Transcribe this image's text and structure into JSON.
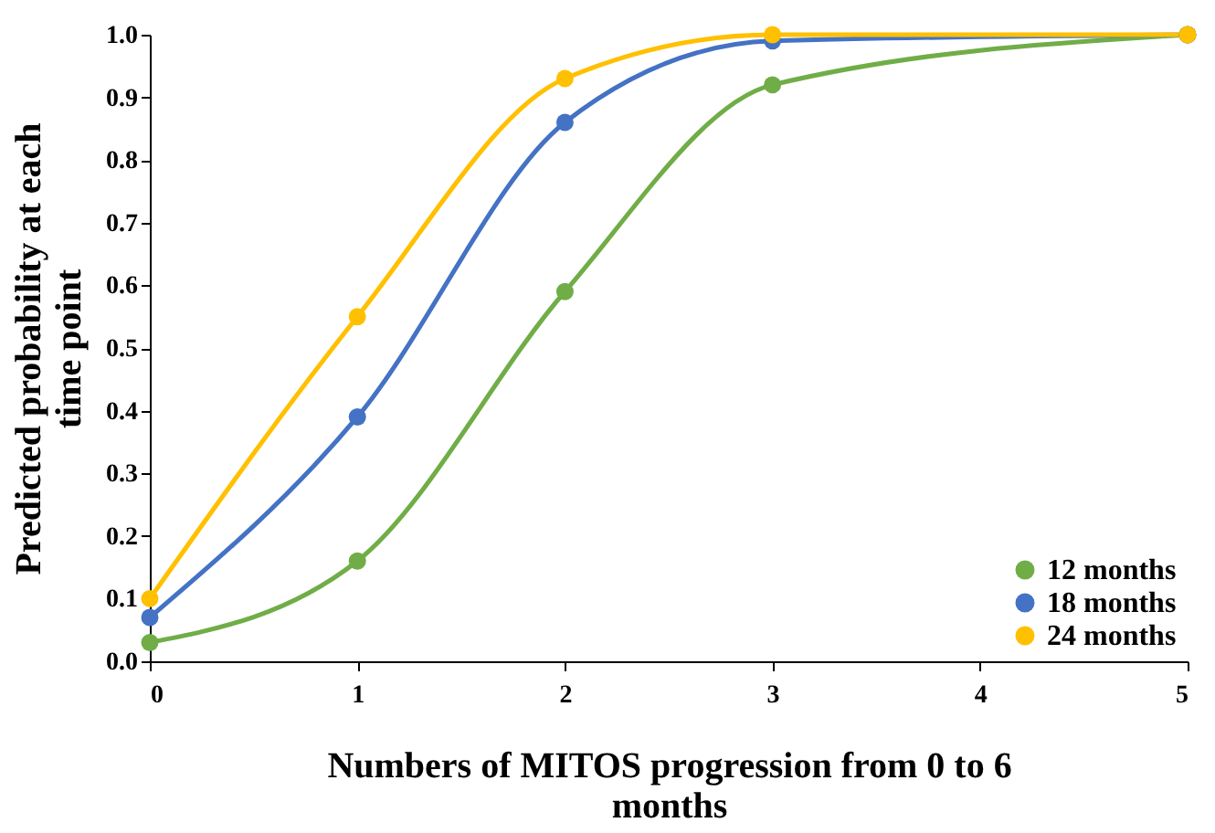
{
  "chart_data": {
    "type": "line",
    "xlabel": "Numbers of MITOS progression from 0 to 6 months",
    "ylabel": "Predicted probability at each time point",
    "x": [
      0,
      1,
      2,
      3,
      5
    ],
    "series": [
      {
        "name": "12 months",
        "color": "#70ad47",
        "values": [
          0.03,
          0.16,
          0.59,
          0.92,
          1.0
        ]
      },
      {
        "name": "18 months",
        "color": "#4472c4",
        "values": [
          0.07,
          0.39,
          0.86,
          0.99,
          1.0
        ]
      },
      {
        "name": "24 months",
        "color": "#ffc000",
        "values": [
          0.1,
          0.55,
          0.93,
          1.0,
          1.0
        ]
      }
    ],
    "xlim": [
      0,
      5
    ],
    "xticks": [
      0,
      1,
      2,
      3,
      4,
      5
    ],
    "ylim": [
      0,
      1
    ],
    "yticks": [
      {
        "value": 0,
        "label": "0.0"
      },
      0.1,
      0.2,
      0.3,
      0.4,
      0.5,
      0.6,
      0.7,
      0.8,
      0.9,
      {
        "value": 1,
        "label": "1.0"
      }
    ],
    "grid": false,
    "legend": "bottom right",
    "marker": "circle",
    "line_style": "solid"
  }
}
